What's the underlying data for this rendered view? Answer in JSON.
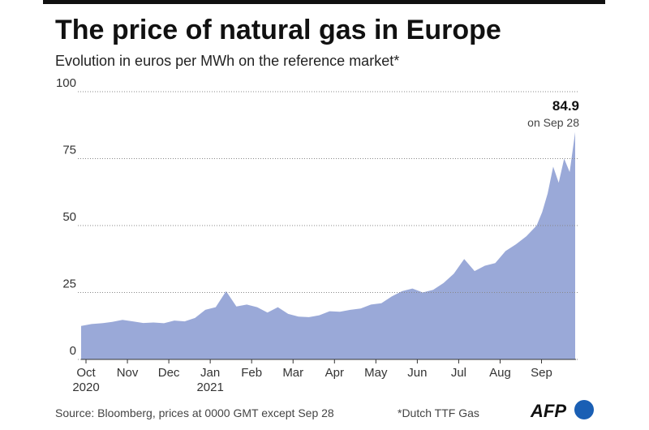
{
  "chart_data": {
    "type": "area",
    "title": "The price of natural gas in Europe",
    "subtitle": "Evolution in euros per MWh on the reference market*",
    "categories": [
      "Oct\n2020",
      null,
      null,
      null,
      "Nov",
      null,
      null,
      null,
      "Dec",
      null,
      null,
      null,
      "Jan\n2021",
      null,
      null,
      null,
      "Feb",
      null,
      null,
      null,
      "Mar",
      null,
      null,
      null,
      "Apr",
      null,
      null,
      null,
      "May",
      null,
      null,
      null,
      "Jun",
      null,
      null,
      null,
      "Jul",
      null,
      null,
      null,
      "Aug",
      null,
      null,
      null,
      "Sep",
      null,
      null,
      null,
      null,
      null,
      null,
      null
    ],
    "series": [
      {
        "name": "Dutch TTF Gas",
        "color": "#9aa9d8",
        "values": [
          12.5,
          13.2,
          13.5,
          14,
          14.8,
          14.2,
          13.6,
          13.8,
          13.5,
          14.5,
          14.2,
          15.5,
          18.5,
          19.5,
          25.5,
          19.8,
          20.5,
          19.5,
          17.5,
          19.5,
          17,
          16,
          15.8,
          16.5,
          18,
          17.8,
          18.5,
          19,
          20.5,
          21,
          23.5,
          25.5,
          26.5,
          25,
          26,
          28.5,
          32,
          37.5,
          33,
          35,
          36,
          40.5,
          43,
          46,
          50,
          55,
          62,
          72,
          66,
          75,
          70,
          84.9
        ]
      }
    ],
    "ylim": [
      0,
      100
    ],
    "yticks": [
      0,
      25,
      50,
      75,
      100
    ],
    "grid": true,
    "annotations": {
      "value": "84.9",
      "date": "on Sep 28"
    },
    "source": "Source: Bloomberg, prices at 0000 GMT except Sep 28",
    "footnote": "*Dutch TTF Gas",
    "logo": "AFP"
  }
}
